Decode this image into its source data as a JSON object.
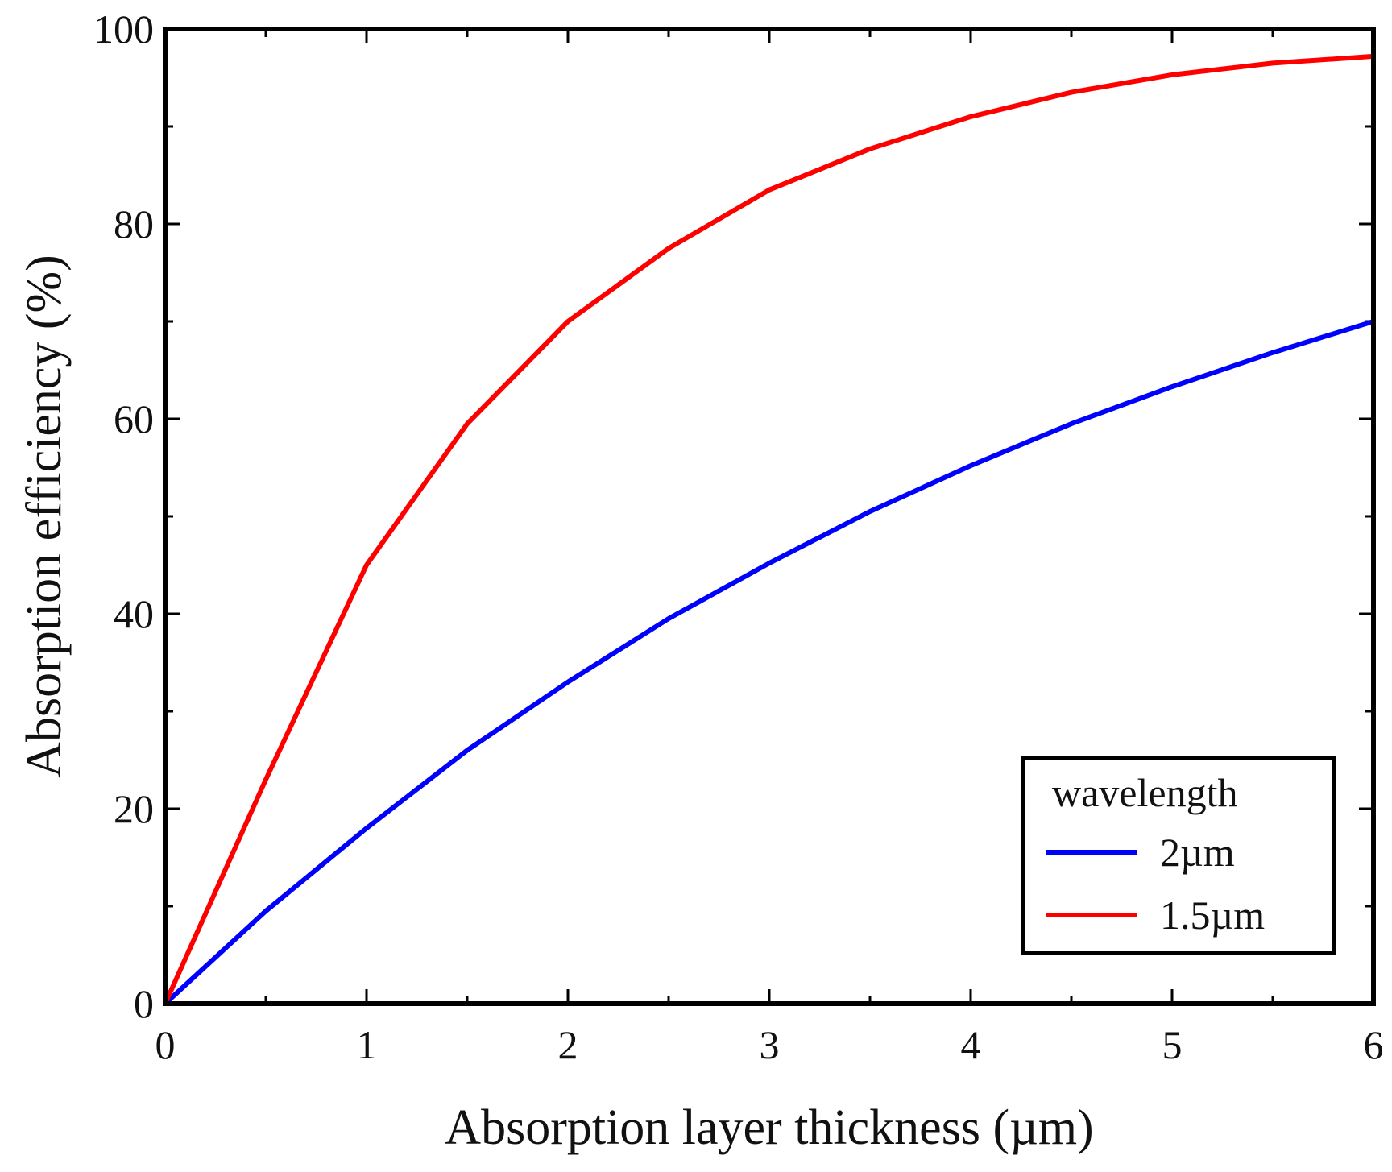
{
  "chart_data": {
    "type": "line",
    "title": "",
    "xlabel": "Absorption layer thickness (µm)",
    "ylabel": "Absorption efficiency (%)",
    "xlim": [
      0,
      6
    ],
    "ylim": [
      0,
      100
    ],
    "x_ticks": [
      0,
      1,
      2,
      3,
      4,
      5,
      6
    ],
    "y_ticks": [
      0,
      20,
      40,
      60,
      80,
      100
    ],
    "grid": false,
    "legend": {
      "title": "wavelength",
      "placement": "bottom-right"
    },
    "series": [
      {
        "name": "2µm",
        "color": "#0000ff",
        "x": [
          0,
          0.5,
          1,
          1.5,
          2,
          2.5,
          3,
          3.5,
          4,
          4.5,
          5,
          5.5,
          6
        ],
        "y": [
          0,
          9.5,
          18,
          26,
          33,
          39.5,
          45.2,
          50.5,
          55.2,
          59.5,
          63.3,
          66.8,
          70
        ]
      },
      {
        "name": "1.5µm",
        "color": "#ff0000",
        "x": [
          0,
          0.5,
          1,
          1.5,
          2,
          2.5,
          3,
          3.5,
          4,
          4.5,
          5,
          5.5,
          6
        ],
        "y": [
          0,
          23,
          45,
          59.5,
          70,
          77.5,
          83.5,
          87.7,
          91,
          93.5,
          95.3,
          96.5,
          97.2
        ]
      }
    ]
  }
}
